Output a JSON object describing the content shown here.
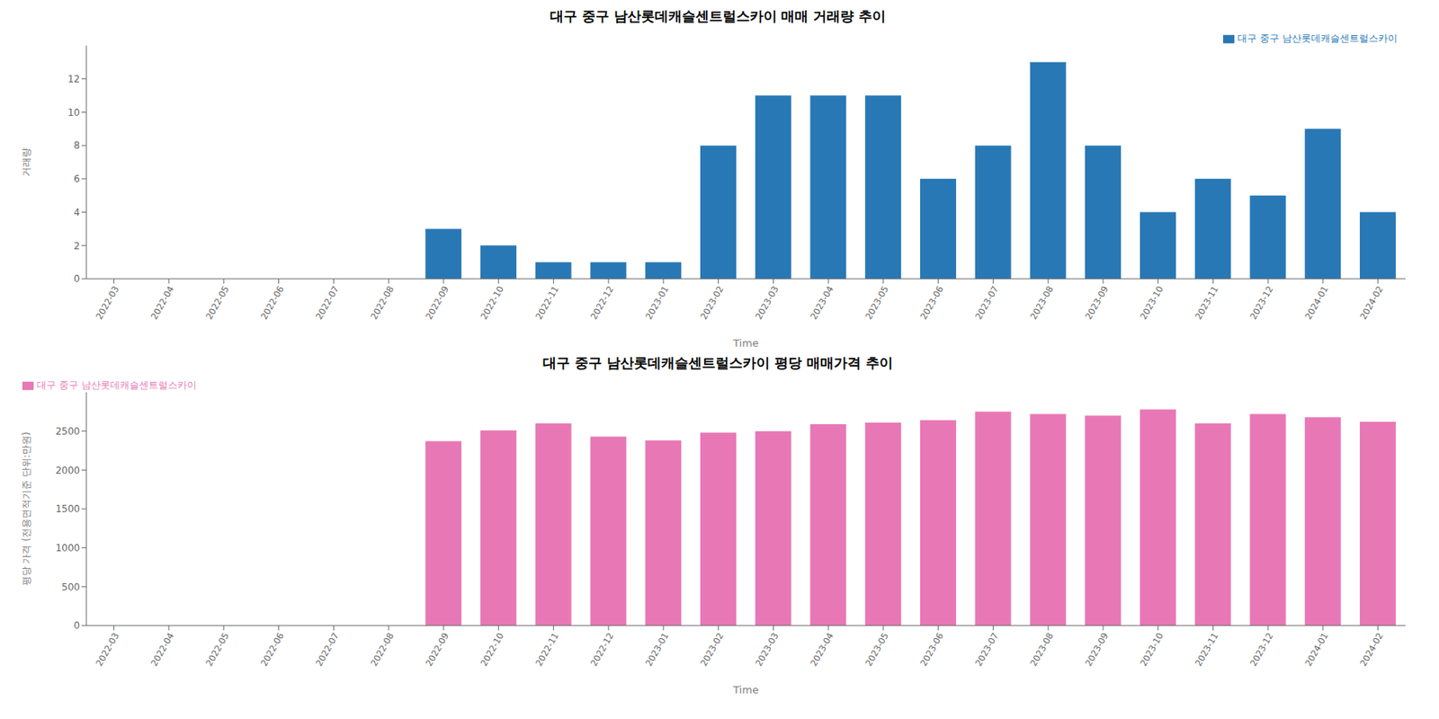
{
  "chart_data": [
    {
      "type": "bar",
      "title": "대구 중구 남산롯데캐슬센트럴스카이 매매 거래량 추이",
      "x_label": "Time",
      "y_label": "거래량",
      "categories": [
        "2022-03",
        "2022-04",
        "2022-05",
        "2022-06",
        "2022-07",
        "2022-08",
        "2022-09",
        "2022-10",
        "2022-11",
        "2022-12",
        "2023-01",
        "2023-02",
        "2023-03",
        "2023-04",
        "2023-05",
        "2023-06",
        "2023-07",
        "2023-08",
        "2023-09",
        "2023-10",
        "2023-11",
        "2023-12",
        "2024-01",
        "2024-02"
      ],
      "series": [
        {
          "name": "대구 중구 남산롯데캐슬센트럴스카이",
          "color": "#2878b5",
          "values": [
            0,
            0,
            0,
            0,
            0,
            0,
            3,
            2,
            1,
            1,
            1,
            8,
            11,
            11,
            11,
            6,
            8,
            13,
            8,
            4,
            6,
            5,
            9,
            4
          ]
        }
      ],
      "ylim": [
        0,
        14
      ],
      "yticks": [
        0,
        2,
        4,
        6,
        8,
        10,
        12
      ],
      "grid": false,
      "legend": "upper right"
    },
    {
      "type": "bar",
      "title": "대구 중구 남산롯데캐슬센트럴스카이 평당 매매가격 추이",
      "x_label": "Time",
      "y_label": "평당 가격 (전용면적기준 단위:만원)",
      "categories": [
        "2022-03",
        "2022-04",
        "2022-05",
        "2022-06",
        "2022-07",
        "2022-08",
        "2022-09",
        "2022-10",
        "2022-11",
        "2022-12",
        "2023-01",
        "2023-02",
        "2023-03",
        "2023-04",
        "2023-05",
        "2023-06",
        "2023-07",
        "2023-08",
        "2023-09",
        "2023-10",
        "2023-11",
        "2023-12",
        "2024-01",
        "2024-02"
      ],
      "series": [
        {
          "name": "대구 중구 남산롯데캐슬센트럴스카이",
          "color": "#e878b5",
          "values": [
            0,
            0,
            0,
            0,
            0,
            0,
            2370,
            2510,
            2600,
            2430,
            2380,
            2480,
            2500,
            2590,
            2610,
            2640,
            2750,
            2720,
            2700,
            2780,
            2600,
            2720,
            2680,
            2620
          ]
        }
      ],
      "ylim": [
        0,
        3000
      ],
      "yticks": [
        0,
        500,
        1000,
        1500,
        2000,
        2500
      ],
      "grid": false,
      "legend": "upper left"
    }
  ]
}
